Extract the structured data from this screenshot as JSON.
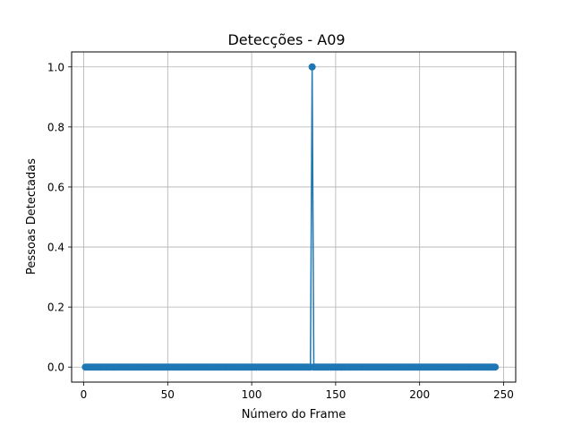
{
  "chart_data": {
    "type": "line",
    "title": "Detecções - A09",
    "xlabel": "Número do Frame",
    "ylabel": "Pessoas Detectadas",
    "xlim": [
      -7.2,
      257.2
    ],
    "ylim": [
      -0.05,
      1.05
    ],
    "xticks": [
      0,
      50,
      100,
      150,
      200,
      250
    ],
    "yticks": [
      0.0,
      0.2,
      0.4,
      0.6,
      0.8,
      1.0
    ],
    "xtick_labels": [
      "0",
      "50",
      "100",
      "150",
      "200",
      "250"
    ],
    "ytick_labels": [
      "0.0",
      "0.2",
      "0.4",
      "0.6",
      "0.8",
      "1.0"
    ],
    "grid": true,
    "marker": "circle",
    "series": [
      {
        "color": "#1f77b4",
        "x_range": [
          1,
          245
        ],
        "baseline_value": 0,
        "peaks": [
          {
            "x": 136,
            "y": 1
          }
        ]
      }
    ]
  }
}
